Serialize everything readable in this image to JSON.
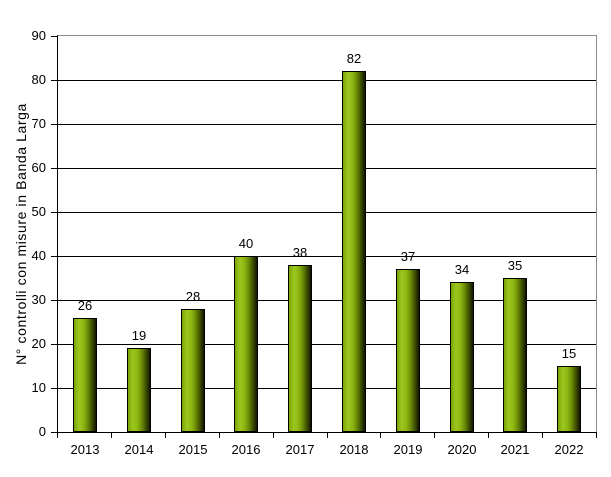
{
  "chart_data": {
    "type": "bar",
    "title": "",
    "categories": [
      "2013",
      "2014",
      "2015",
      "2016",
      "2017",
      "2018",
      "2019",
      "2020",
      "2021",
      "2022"
    ],
    "values": [
      26,
      19,
      28,
      40,
      38,
      82,
      37,
      34,
      35,
      15
    ],
    "bar_value_labels": [
      "26",
      "19",
      "28",
      "40",
      "38",
      "82",
      "37",
      "34",
      "35",
      "15"
    ],
    "xlabel": "",
    "ylabel": "N° controlli con misure in Banda Larga",
    "ylim": [
      0,
      90
    ],
    "ytick_step": 10,
    "ytick_labels": [
      "0",
      "10",
      "20",
      "30",
      "40",
      "50",
      "60",
      "70",
      "80",
      "90"
    ],
    "grid": "horizontal",
    "legend": "none",
    "colors": {
      "background": "#ffffff",
      "text": "#000000",
      "gridline": "#000000",
      "axis_line": "#000000",
      "plot_border_top_right": "#8c8c8c",
      "bar_border": "#000000",
      "bar_gradient": [
        "#7ba309",
        "#9cc71d",
        "#8fb913",
        "#6c8c06",
        "#3c4e02",
        "#101500"
      ]
    }
  }
}
